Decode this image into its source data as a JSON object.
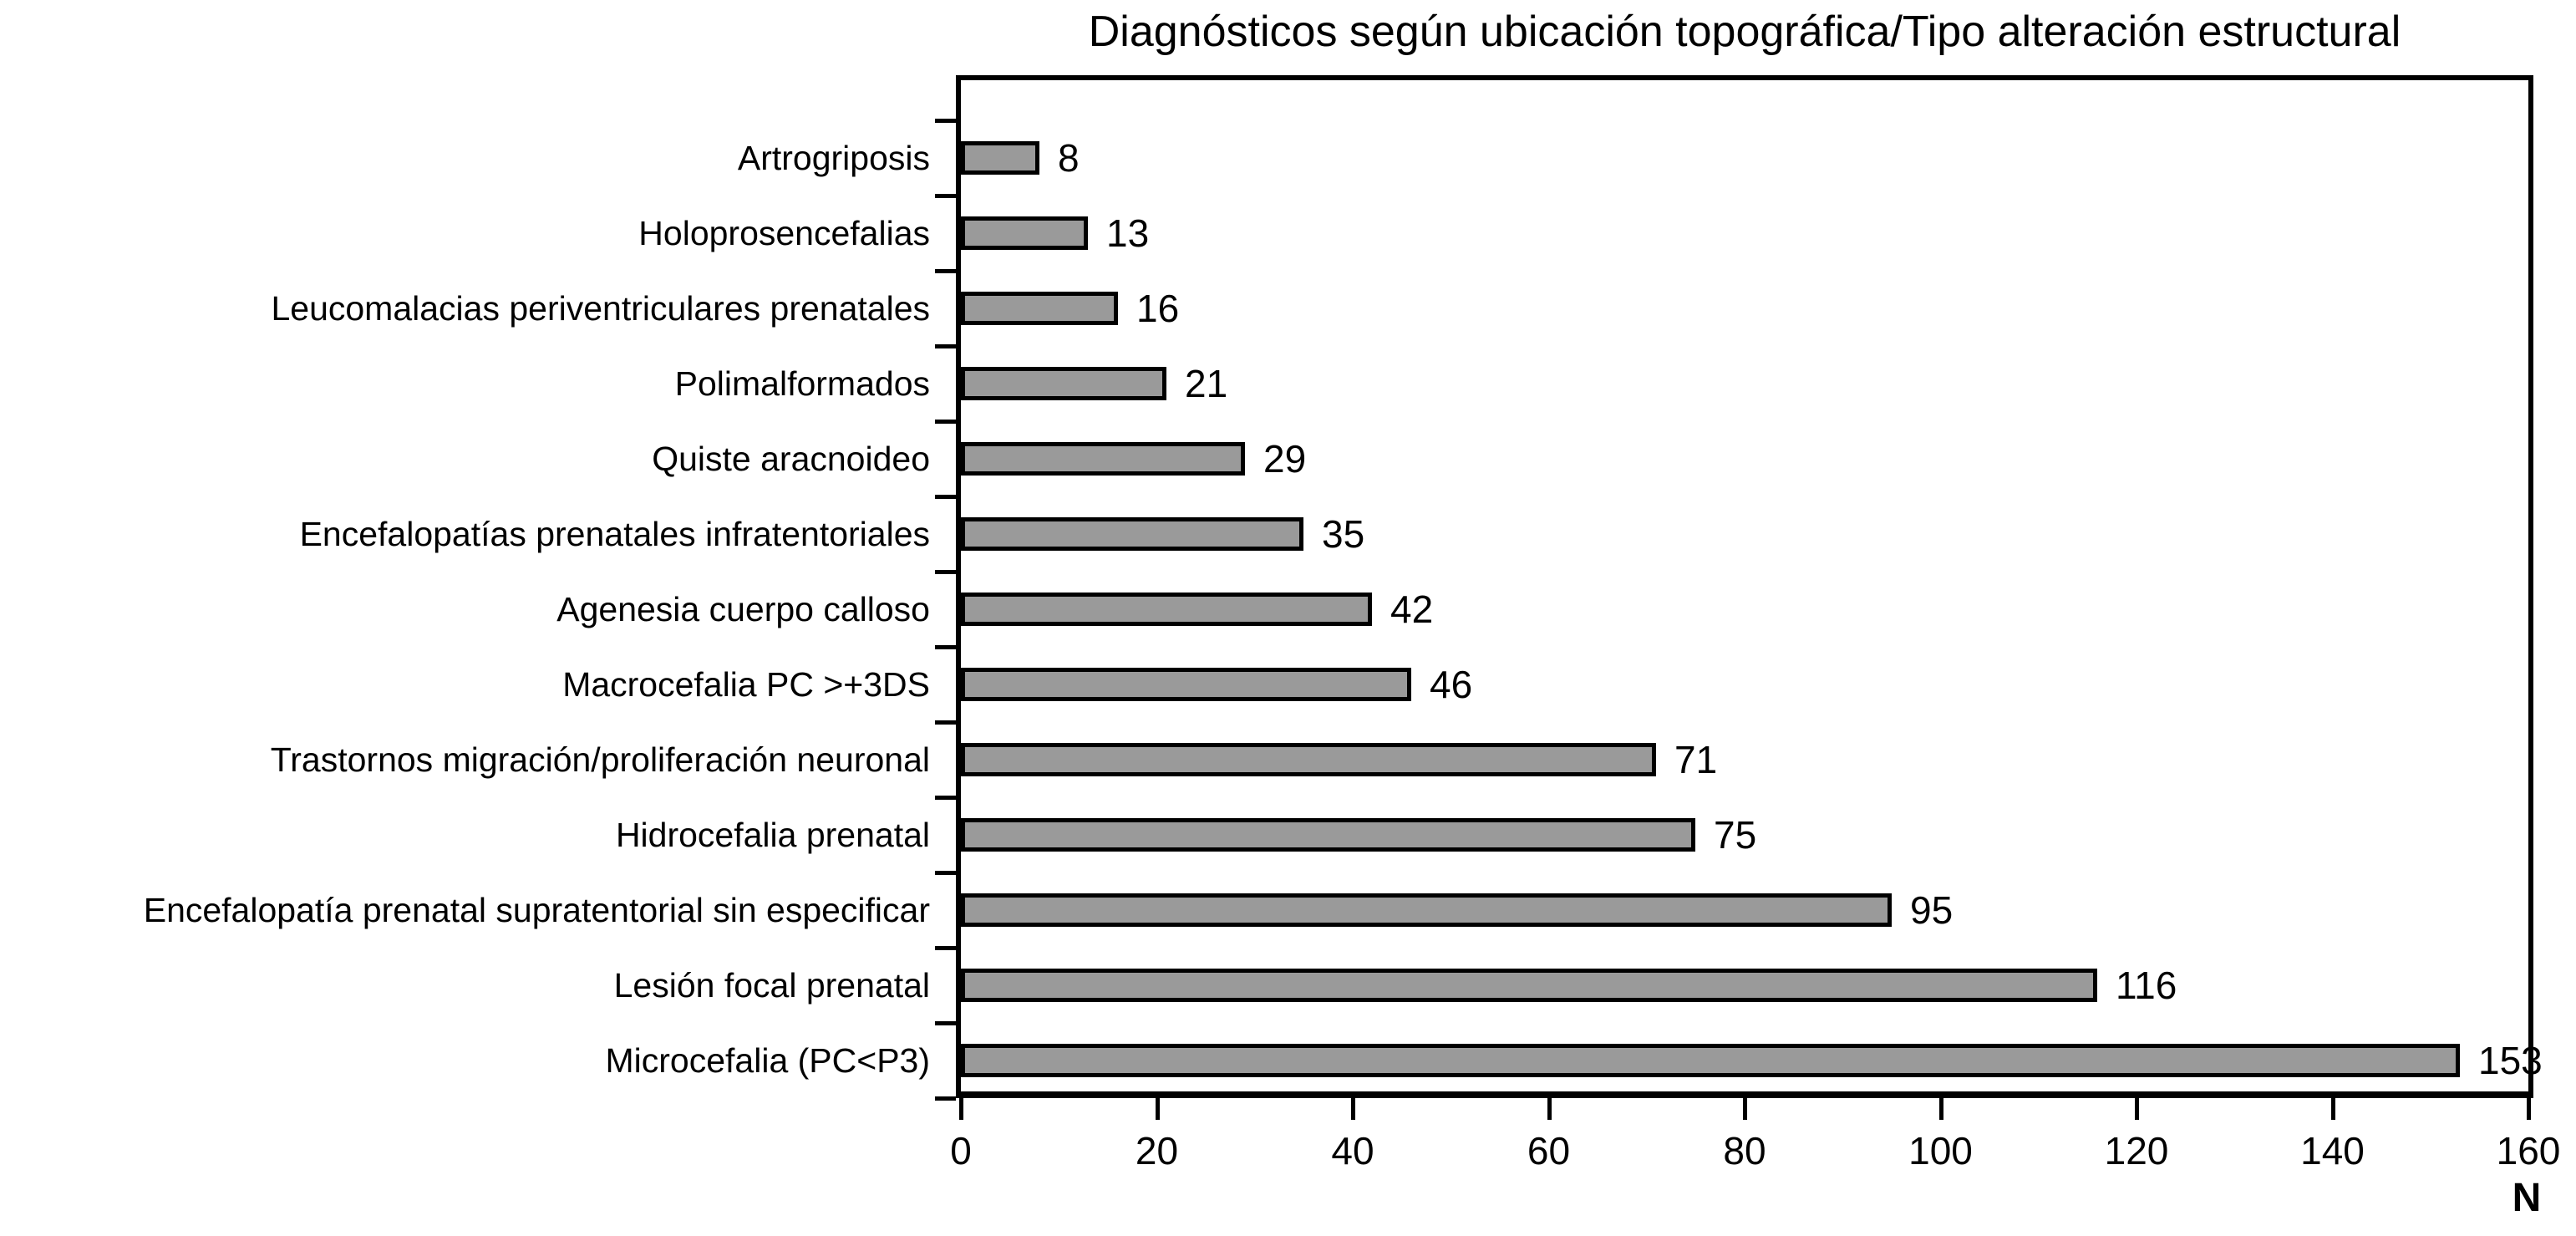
{
  "chart_data": {
    "type": "bar",
    "orientation": "horizontal",
    "title": "Diagnósticos según ubicación topográfica/Tipo alteración estructural",
    "xlabel": "N",
    "xlim": [
      0,
      160
    ],
    "xticks": [
      0,
      20,
      40,
      60,
      80,
      100,
      120,
      140,
      160
    ],
    "grid": false,
    "legend": "none",
    "bar_fill_color": "#9a9a9a",
    "bar_border_color": "#000000",
    "categories": [
      "Artrogriposis",
      "Holoprosencefalias",
      "Leucomalacias periventriculares prenatales",
      "Polimalformados",
      "Quiste aracnoideo",
      "Encefalopatías prenatales infratentoriales",
      "Agenesia cuerpo calloso",
      "Macrocefalia PC >+3DS",
      "Trastornos migración/proliferación neuronal",
      "Hidrocefalia prenatal",
      "Encefalopatía prenatal supratentorial sin especificar",
      "Lesión focal prenatal",
      "Microcefalia (PC<P3)"
    ],
    "values": [
      8,
      13,
      16,
      21,
      29,
      35,
      42,
      46,
      71,
      75,
      95,
      116,
      153
    ]
  }
}
